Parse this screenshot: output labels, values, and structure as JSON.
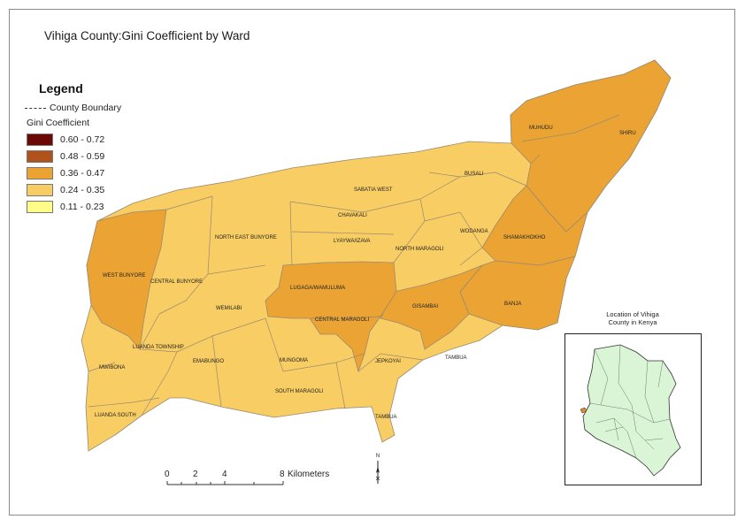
{
  "title": "Vihiga County:Gini Coefficient by Ward",
  "legend": {
    "heading": "Legend",
    "boundary_label": "County Boundary",
    "gini_heading": "Gini Coefficient",
    "classes": [
      {
        "label": "0.60 - 0.72",
        "color": "#6b0a05"
      },
      {
        "label": "0.48 - 0.59",
        "color": "#b0521a"
      },
      {
        "label": "0.36 - 0.47",
        "color": "#eba433"
      },
      {
        "label": "0.24 - 0.35",
        "color": "#f8cd63"
      },
      {
        "label": "0.11 - 0.23",
        "color": "#fdfd87"
      }
    ]
  },
  "wards": [
    {
      "name": "MUHUDU",
      "gini_class": "0.36 - 0.47"
    },
    {
      "name": "SHIRU",
      "gini_class": "0.36 - 0.47"
    },
    {
      "name": "BUSALI",
      "gini_class": "0.24 - 0.35"
    },
    {
      "name": "SABATIA WEST",
      "gini_class": "0.24 - 0.35"
    },
    {
      "name": "CHAVAKALI",
      "gini_class": "0.24 - 0.35"
    },
    {
      "name": "WODANGA",
      "gini_class": "0.24 - 0.35"
    },
    {
      "name": "SHAMAKHOKHO",
      "gini_class": "0.36 - 0.47"
    },
    {
      "name": "NORTH EAST BUNYORE",
      "gini_class": "0.24 - 0.35"
    },
    {
      "name": "LYAYWA/IZAVA",
      "gini_class": "0.24 - 0.35"
    },
    {
      "name": "NORTH MARAGOLI",
      "gini_class": "0.24 - 0.35"
    },
    {
      "name": "WEST BUNYORE",
      "gini_class": "0.36 - 0.47"
    },
    {
      "name": "CENTRAL BUNYORE",
      "gini_class": "0.24 - 0.35"
    },
    {
      "name": "LUGAGA/WAMULUMA",
      "gini_class": "0.36 - 0.47"
    },
    {
      "name": "GISAMBAI",
      "gini_class": "0.36 - 0.47"
    },
    {
      "name": "BANJA",
      "gini_class": "0.36 - 0.47"
    },
    {
      "name": "WEMILABI",
      "gini_class": "0.24 - 0.35"
    },
    {
      "name": "CENTRAL MARAGOLI",
      "gini_class": "0.36 - 0.47"
    },
    {
      "name": "LUANDA TOWNSHIP",
      "gini_class": "0.24 - 0.35"
    },
    {
      "name": "EMABUNGO",
      "gini_class": "0.24 - 0.35"
    },
    {
      "name": "MUNGOMA",
      "gini_class": "0.24 - 0.35"
    },
    {
      "name": "JEPKOYAI",
      "gini_class": "0.24 - 0.35"
    },
    {
      "name": "TAMBUA",
      "gini_class": "0.24 - 0.35"
    },
    {
      "name": "MWIBONA",
      "gini_class": "0.24 - 0.35"
    },
    {
      "name": "SOUTH MARAGOLI",
      "gini_class": "0.24 - 0.35"
    },
    {
      "name": "LUANDA SOUTH",
      "gini_class": "0.24 - 0.35"
    },
    {
      "name": "TAMBUA",
      "gini_class": "0.24 - 0.35"
    }
  ],
  "inset": {
    "caption_line1": "Location of Vihiga",
    "caption_line2": "County in Kenya",
    "kenya_fill": "#d9f5d6",
    "highlight_fill": "#e88a2a"
  },
  "scalebar": {
    "ticks": [
      "0",
      "2",
      "4",
      "8"
    ],
    "unit": "Kilometers"
  },
  "north_arrow": "N"
}
